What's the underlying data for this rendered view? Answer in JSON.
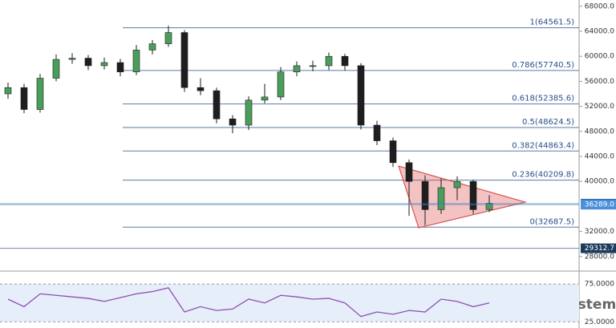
{
  "chart_data": [
    {
      "type": "candlestick",
      "open": [
        54000,
        55000,
        51500,
        56500,
        59500,
        59700,
        58500,
        59000,
        57500,
        61000,
        62000,
        63800,
        55000,
        54500,
        50000,
        49000,
        53000,
        53500,
        57500,
        58500,
        58500,
        60000,
        58500,
        49000,
        46500,
        43000,
        40000,
        35500,
        39000,
        40000,
        35500
      ],
      "high": [
        55800,
        55600,
        57200,
        60300,
        60500,
        60200,
        59800,
        59600,
        61800,
        62600,
        64900,
        64200,
        56500,
        55000,
        50600,
        53600,
        55600,
        58300,
        59200,
        59300,
        60600,
        60400,
        58900,
        49700,
        47000,
        43500,
        41000,
        40500,
        40800,
        40300,
        37800
      ],
      "low": [
        53200,
        50900,
        51000,
        56000,
        58800,
        57800,
        57900,
        56800,
        57000,
        60300,
        61500,
        54300,
        53800,
        49300,
        47700,
        48200,
        52500,
        53000,
        56800,
        57600,
        57800,
        57700,
        48300,
        45800,
        42300,
        34500,
        33000,
        34800,
        37000,
        34800,
        35100
      ],
      "close": [
        55000,
        51500,
        56500,
        59500,
        59700,
        58500,
        59000,
        57500,
        61000,
        62000,
        63800,
        55000,
        54500,
        50000,
        49000,
        53000,
        53500,
        57500,
        58500,
        58500,
        60000,
        58500,
        49000,
        46500,
        43000,
        40000,
        35500,
        39000,
        40000,
        35500,
        36500
      ],
      "up_color": "#4a9e5c",
      "down_color": "#1e1e1e",
      "xlim": [
        0,
        36.1
      ],
      "ylim": [
        26700,
        69000
      ],
      "yticks": [
        {
          "value": 68000,
          "label": "68000.0"
        },
        {
          "value": 64000,
          "label": "64000.0"
        },
        {
          "value": 60000,
          "label": "60000.0"
        },
        {
          "value": 56000,
          "label": "56000.0"
        },
        {
          "value": 52000,
          "label": "52000.0"
        },
        {
          "value": 48000,
          "label": "48000.0"
        },
        {
          "value": 44000,
          "label": "44000.0"
        },
        {
          "value": 40000,
          "label": "40000.0"
        },
        {
          "value": 32000,
          "label": "32000.0"
        },
        {
          "value": 28000,
          "label": "28000.0"
        }
      ],
      "fib_levels": [
        {
          "value": 64561.5,
          "label": "1(64561.5)"
        },
        {
          "value": 57740.5,
          "label": "0.786(57740.5)"
        },
        {
          "value": 52385.6,
          "label": "0.618(52385.6)"
        },
        {
          "value": 48624.5,
          "label": "0.5(48624.5)"
        },
        {
          "value": 44863.4,
          "label": "0.382(44863.4)"
        },
        {
          "value": 40209.8,
          "label": "0.236(40209.8)"
        },
        {
          "value": 32687.5,
          "label": "0(32687.5)"
        }
      ],
      "fib_color": "#5b7aa6",
      "triangle": {
        "x": [
          24.85,
          32.75,
          26.1
        ],
        "y": [
          42462,
          36692,
          32590
        ],
        "color": "#d9534f"
      },
      "price_tags": [
        {
          "value": 36448.4,
          "color": "#2b6cb0"
        },
        {
          "value": 36289.0,
          "label": "36289.0",
          "color": "#4a90d9"
        },
        {
          "value": 29312.7,
          "label": "29312.7",
          "color": "#1b3a5c"
        }
      ],
      "watermark": "BitcoinSistemi"
    },
    {
      "type": "line",
      "values": [
        55,
        45,
        62,
        60,
        58,
        56,
        52,
        57,
        62,
        65,
        70,
        38,
        45,
        40,
        42,
        55,
        50,
        60,
        58,
        55,
        56,
        50,
        32,
        38,
        35,
        40,
        38,
        55,
        52,
        45,
        50
      ],
      "color": "#8e4fb3",
      "ylim": [
        20,
        90
      ],
      "yticks": [
        {
          "value": 75,
          "label": "75.0000"
        },
        {
          "value": 25,
          "label": "25.0000"
        }
      ]
    }
  ]
}
